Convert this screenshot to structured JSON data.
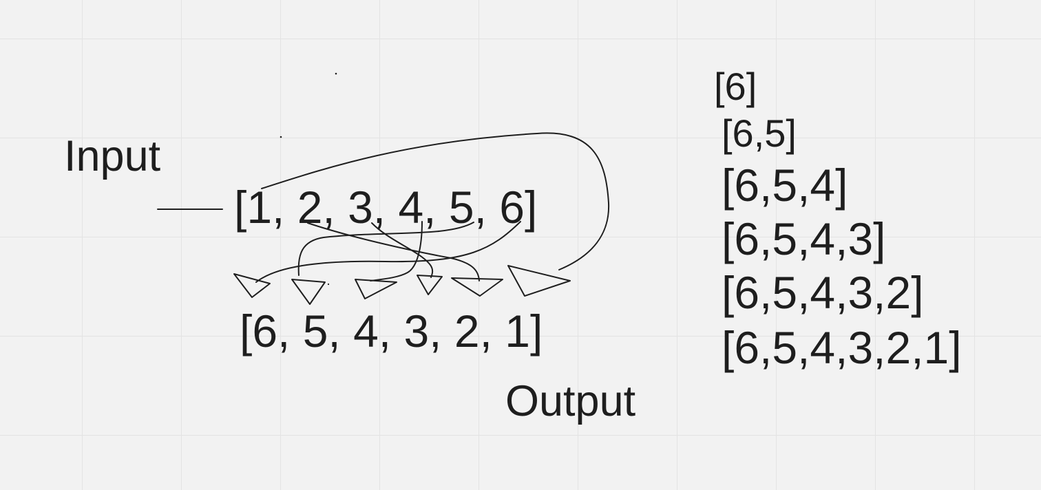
{
  "canvas": {
    "background": "#f2f2f2",
    "grid_color": "#e3e3e3",
    "ink_color": "#1e1e1e"
  },
  "labels": {
    "input": "Input",
    "output": "Output"
  },
  "arrays": {
    "input": "[1, 2, 3, 4, 5, 6]",
    "output": "[6, 5, 4, 3, 2, 1]"
  },
  "steps": [
    "[6]",
    "[6,5]",
    "[6,5,4]",
    "[6,5,4,3]",
    "[6,5,4,3,2]",
    "[6,5,4,3,2,1]"
  ],
  "icons": {
    "arrows": "hand-drawn-curved-arrow-icon",
    "pointer": "hand-drawn-line"
  }
}
